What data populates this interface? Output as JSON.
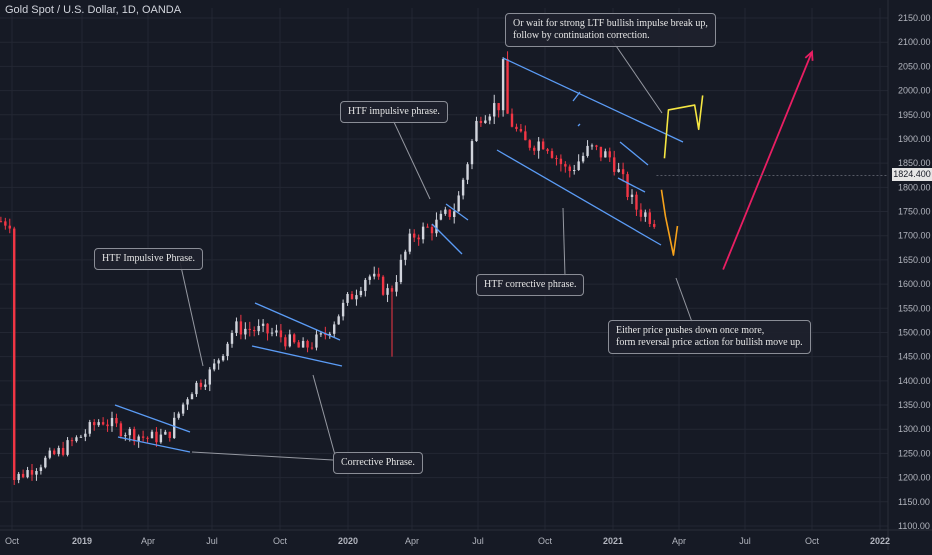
{
  "header": {
    "title": "Gold Spot / U.S. Dollar, 1D, OANDA"
  },
  "price_tag": "1824.400",
  "annotations": {
    "htf_impulsive_1": "HTF Impulsive Phrase.",
    "corrective": "Corrective Phrase.",
    "htf_impulsive_2": "HTF impulsive phrase.",
    "htf_corrective": "HTF corrective phrase.",
    "wait_line1": "Or wait for strong LTF bullish impulse break up,",
    "wait_line2": "follow by continuation correction.",
    "either_line1": "Either price pushes down once more,",
    "either_line2": "form reversal price action for bullish move up."
  },
  "colors": {
    "background": "#161a25",
    "grid": "#232733",
    "up_candle": "#d1d4dc",
    "down_candle": "#f23645",
    "trendline": "#5b9cf6",
    "projection_yellow": "#f5e642",
    "projection_orange": "#f7a21b",
    "arrow_pink": "#e91e63",
    "axis_text": "#b2b5be"
  },
  "chart_data": {
    "type": "candlestick",
    "x_axis_ticks": [
      "Oct",
      "2019",
      "Apr",
      "Jul",
      "Oct",
      "2020",
      "Apr",
      "Jul",
      "Oct",
      "2021",
      "Apr",
      "Jul",
      "Oct",
      "2022"
    ],
    "y_axis_ticks": [
      1100,
      1150,
      1200,
      1250,
      1300,
      1350,
      1400,
      1450,
      1500,
      1550,
      1600,
      1650,
      1700,
      1750,
      1800,
      1850,
      1900,
      1950,
      2000,
      2050,
      2100,
      2150
    ],
    "ylim": [
      1090,
      2160
    ],
    "last_price": 1824.4,
    "price_path_months": [
      [
        "2018-10",
        1195
      ],
      [
        "2018-11",
        1222
      ],
      [
        "2018-12",
        1250
      ],
      [
        "2019-01",
        1282
      ],
      [
        "2019-02",
        1320
      ],
      [
        "2019-03",
        1298
      ],
      [
        "2019-04",
        1282
      ],
      [
        "2019-05",
        1285
      ],
      [
        "2019-06",
        1380
      ],
      [
        "2019-07",
        1420
      ],
      [
        "2019-08",
        1510
      ],
      [
        "2019-09",
        1505
      ],
      [
        "2019-10",
        1495
      ],
      [
        "2019-11",
        1465
      ],
      [
        "2019-12",
        1490
      ],
      [
        "2020-01",
        1560
      ],
      [
        "2020-02",
        1620
      ],
      [
        "2020-03",
        1580
      ],
      [
        "2020-04",
        1700
      ],
      [
        "2020-05",
        1720
      ],
      [
        "2020-06",
        1760
      ],
      [
        "2020-07",
        1950
      ],
      [
        "2020-08",
        1975
      ],
      [
        "2020-09",
        1890
      ],
      [
        "2020-10",
        1895
      ],
      [
        "2020-11",
        1830
      ],
      [
        "2020-12",
        1880
      ],
      [
        "2021-01",
        1860
      ],
      [
        "2021-02",
        1760
      ],
      [
        "2021-03",
        1730
      ]
    ],
    "price_extremes": [
      [
        "2020-03",
        1450
      ],
      [
        "2020-08",
        2075
      ]
    ],
    "projections": {
      "yellow": [
        [
          "2021-03",
          1860
        ],
        [
          "2021-03",
          1960
        ],
        [
          "2021-04",
          1970
        ],
        [
          "2021-04",
          1920
        ],
        [
          "2021-04",
          1990
        ]
      ],
      "orange": [
        [
          "2021-03",
          1795
        ],
        [
          "2021-03",
          1740
        ],
        [
          "2021-03",
          1700
        ],
        [
          "2021-03",
          1660
        ],
        [
          "2021-03",
          1720
        ]
      ],
      "pink_arrow": [
        [
          "2021-06",
          1630
        ],
        [
          "2021-10",
          2080
        ]
      ]
    }
  }
}
